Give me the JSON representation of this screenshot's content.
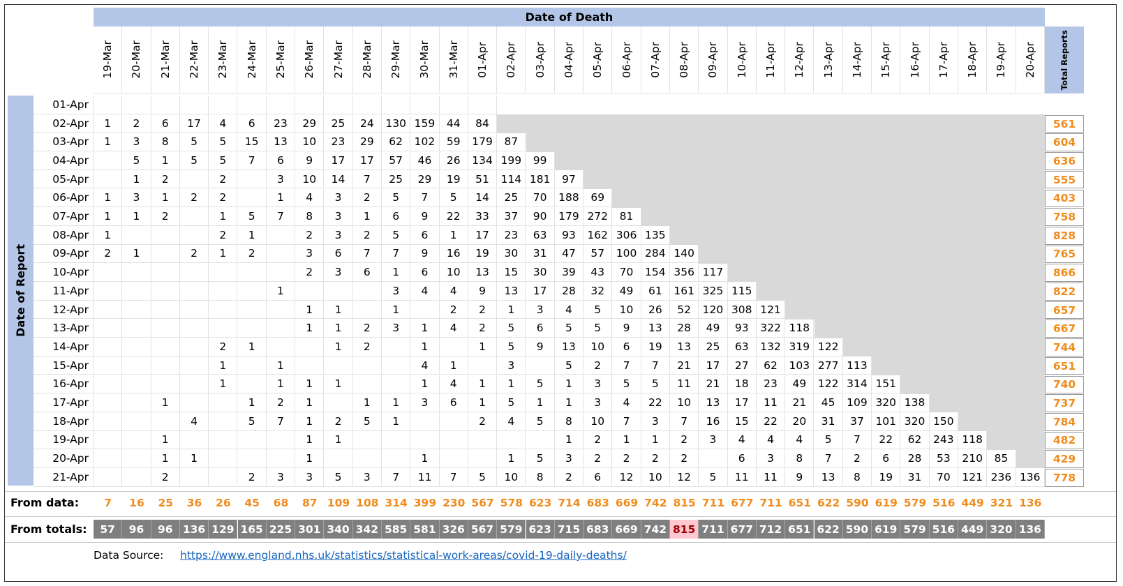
{
  "header": {
    "date_of_death_label": "Date of Death",
    "date_of_report_label": "Date of Report",
    "total_reports_label": "Total Reports"
  },
  "death_dates": [
    "19-Mar",
    "20-Mar",
    "21-Mar",
    "22-Mar",
    "23-Mar",
    "24-Mar",
    "25-Mar",
    "26-Mar",
    "27-Mar",
    "28-Mar",
    "29-Mar",
    "30-Mar",
    "31-Mar",
    "01-Apr",
    "02-Apr",
    "03-Apr",
    "04-Apr",
    "05-Apr",
    "06-Apr",
    "07-Apr",
    "08-Apr",
    "09-Apr",
    "10-Apr",
    "11-Apr",
    "12-Apr",
    "13-Apr",
    "14-Apr",
    "15-Apr",
    "16-Apr",
    "17-Apr",
    "18-Apr",
    "19-Apr",
    "20-Apr"
  ],
  "report_rows": [
    {
      "date": "01-Apr",
      "values": [
        null,
        null,
        null,
        null,
        null,
        null,
        null,
        null,
        null,
        null,
        null,
        null,
        null,
        null
      ],
      "total": ""
    },
    {
      "date": "02-Apr",
      "values": [
        1,
        2,
        6,
        17,
        4,
        6,
        23,
        29,
        25,
        24,
        130,
        159,
        44,
        84
      ],
      "total": "561"
    },
    {
      "date": "03-Apr",
      "values": [
        1,
        3,
        8,
        5,
        5,
        15,
        13,
        10,
        23,
        29,
        62,
        102,
        59,
        179,
        87
      ],
      "total": "604"
    },
    {
      "date": "04-Apr",
      "values": [
        null,
        5,
        1,
        5,
        5,
        7,
        6,
        9,
        17,
        17,
        57,
        46,
        26,
        134,
        199,
        99
      ],
      "total": "636"
    },
    {
      "date": "05-Apr",
      "values": [
        null,
        1,
        2,
        null,
        2,
        null,
        3,
        10,
        14,
        7,
        25,
        29,
        19,
        51,
        114,
        181,
        97
      ],
      "total": "555"
    },
    {
      "date": "06-Apr",
      "values": [
        1,
        3,
        1,
        2,
        2,
        null,
        1,
        4,
        3,
        2,
        5,
        7,
        5,
        14,
        25,
        70,
        188,
        69
      ],
      "total": "403"
    },
    {
      "date": "07-Apr",
      "values": [
        1,
        1,
        2,
        null,
        1,
        5,
        7,
        8,
        3,
        1,
        6,
        9,
        22,
        33,
        37,
        90,
        179,
        272,
        81
      ],
      "total": "758"
    },
    {
      "date": "08-Apr",
      "values": [
        1,
        null,
        null,
        null,
        2,
        1,
        null,
        2,
        3,
        2,
        5,
        6,
        1,
        17,
        23,
        63,
        93,
        162,
        306,
        135
      ],
      "total": "828"
    },
    {
      "date": "09-Apr",
      "values": [
        2,
        1,
        null,
        2,
        1,
        2,
        null,
        3,
        6,
        7,
        7,
        9,
        16,
        19,
        30,
        31,
        47,
        57,
        100,
        284,
        140
      ],
      "total": "765"
    },
    {
      "date": "10-Apr",
      "values": [
        null,
        null,
        null,
        null,
        null,
        null,
        null,
        2,
        3,
        6,
        1,
        6,
        10,
        13,
        15,
        30,
        39,
        43,
        70,
        154,
        356,
        117
      ],
      "total": "866"
    },
    {
      "date": "11-Apr",
      "values": [
        null,
        null,
        null,
        null,
        null,
        null,
        1,
        null,
        null,
        null,
        3,
        4,
        4,
        9,
        13,
        17,
        28,
        32,
        49,
        61,
        161,
        325,
        115
      ],
      "total": "822"
    },
    {
      "date": "12-Apr",
      "values": [
        null,
        null,
        null,
        null,
        null,
        null,
        null,
        1,
        1,
        null,
        1,
        null,
        2,
        2,
        1,
        3,
        4,
        5,
        10,
        26,
        52,
        120,
        308,
        121
      ],
      "total": "657"
    },
    {
      "date": "13-Apr",
      "values": [
        null,
        null,
        null,
        null,
        null,
        null,
        null,
        1,
        1,
        2,
        3,
        1,
        4,
        2,
        5,
        6,
        5,
        5,
        9,
        13,
        28,
        49,
        93,
        322,
        118
      ],
      "total": "667"
    },
    {
      "date": "14-Apr",
      "values": [
        null,
        null,
        null,
        null,
        2,
        1,
        null,
        null,
        1,
        2,
        null,
        1,
        null,
        1,
        5,
        9,
        13,
        10,
        6,
        19,
        13,
        25,
        63,
        132,
        319,
        122
      ],
      "total": "744"
    },
    {
      "date": "15-Apr",
      "values": [
        null,
        null,
        null,
        null,
        1,
        null,
        1,
        null,
        null,
        null,
        null,
        4,
        1,
        null,
        3,
        null,
        5,
        2,
        7,
        7,
        21,
        17,
        27,
        62,
        103,
        277,
        113
      ],
      "total": "651"
    },
    {
      "date": "16-Apr",
      "values": [
        null,
        null,
        null,
        null,
        1,
        null,
        1,
        1,
        1,
        null,
        null,
        1,
        4,
        1,
        1,
        5,
        1,
        3,
        5,
        5,
        11,
        21,
        18,
        23,
        49,
        122,
        314,
        151
      ],
      "total": "740"
    },
    {
      "date": "17-Apr",
      "values": [
        null,
        null,
        1,
        null,
        null,
        1,
        2,
        1,
        null,
        1,
        1,
        3,
        6,
        1,
        5,
        1,
        1,
        3,
        4,
        22,
        10,
        13,
        17,
        11,
        21,
        45,
        109,
        320,
        138
      ],
      "total": "737"
    },
    {
      "date": "18-Apr",
      "values": [
        null,
        null,
        null,
        4,
        null,
        5,
        7,
        1,
        2,
        5,
        1,
        null,
        null,
        2,
        4,
        5,
        8,
        10,
        7,
        3,
        7,
        16,
        15,
        22,
        20,
        31,
        37,
        101,
        320,
        150
      ],
      "total": "784"
    },
    {
      "date": "19-Apr",
      "values": [
        null,
        null,
        1,
        null,
        null,
        null,
        null,
        1,
        1,
        null,
        null,
        null,
        null,
        null,
        null,
        null,
        1,
        2,
        1,
        1,
        2,
        3,
        4,
        4,
        4,
        5,
        7,
        22,
        62,
        243,
        118
      ],
      "total": "482"
    },
    {
      "date": "20-Apr",
      "values": [
        null,
        null,
        1,
        1,
        null,
        null,
        null,
        1,
        null,
        null,
        null,
        1,
        null,
        null,
        1,
        5,
        3,
        2,
        2,
        2,
        2,
        null,
        6,
        3,
        8,
        7,
        2,
        6,
        28,
        53,
        210,
        85
      ],
      "total": "429"
    },
    {
      "date": "21-Apr",
      "values": [
        null,
        null,
        2,
        null,
        null,
        2,
        3,
        3,
        5,
        3,
        7,
        11,
        7,
        5,
        10,
        8,
        2,
        6,
        12,
        10,
        12,
        5,
        11,
        11,
        9,
        13,
        8,
        19,
        31,
        70,
        121,
        236,
        136
      ],
      "total": "778"
    }
  ],
  "from_data": {
    "label": "From data:",
    "values": [
      "7",
      "16",
      "25",
      "36",
      "26",
      "45",
      "68",
      "87",
      "109",
      "108",
      "314",
      "399",
      "230",
      "567",
      "578",
      "623",
      "714",
      "683",
      "669",
      "742",
      "815",
      "711",
      "677",
      "711",
      "651",
      "622",
      "590",
      "619",
      "579",
      "516",
      "449",
      "321",
      "136"
    ]
  },
  "from_totals": {
    "label": "From totals:",
    "values": [
      "57",
      "96",
      "96",
      "136",
      "129",
      "165",
      "225",
      "301",
      "340",
      "342",
      "585",
      "581",
      "326",
      "567",
      "579",
      "623",
      "715",
      "683",
      "669",
      "742",
      "815",
      "711",
      "677",
      "712",
      "651",
      "622",
      "590",
      "619",
      "579",
      "516",
      "449",
      "320",
      "136"
    ],
    "highlight_index": 20
  },
  "source": {
    "label": "Data Source:",
    "url_text": "https://www.england.nhs.uk/statistics/statistical-work-areas/covid-19-daily-deaths/"
  },
  "colors": {
    "header_blue": "#b4c6e7",
    "gray_fill": "#d9d9d9",
    "orange_text": "#f08c1e",
    "dark_gray": "#7f7f7f",
    "highlight_pink": "#ffc7ce"
  }
}
